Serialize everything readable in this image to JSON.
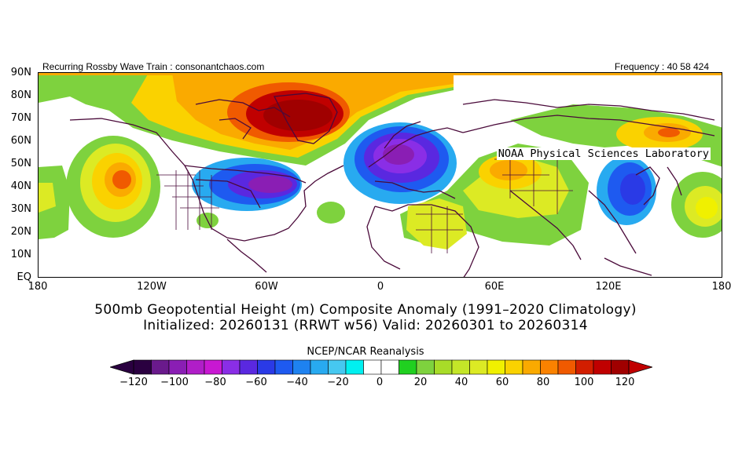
{
  "header": {
    "left": "Recurring Rossby Wave Train : consonantchaos.com",
    "right": "Frequency : 40 58 424",
    "lab": "NOAA Physical Sciences Laboratory"
  },
  "map": {
    "lat_labels": [
      "90N",
      "80N",
      "70N",
      "60N",
      "50N",
      "40N",
      "30N",
      "20N",
      "10N",
      "EQ"
    ],
    "lon_labels": [
      "180",
      "120W",
      "60W",
      "0",
      "60E",
      "120E",
      "180"
    ]
  },
  "title": {
    "line1": "500mb Geopotential Height (m) Composite Anomaly (1991–2020 Climatology)",
    "line2": "Initialized: 20260131 (RRWT w56) Valid: 20260301 to 20260314"
  },
  "colorbar": {
    "source": "NCEP/NCAR Reanalysis",
    "ticks": [
      "−120",
      "−100",
      "−80",
      "−60",
      "−40",
      "−20",
      "0",
      "20",
      "40",
      "60",
      "80",
      "100",
      "120"
    ],
    "colors": [
      "#2a0040",
      "#6a1a8c",
      "#8a1eb4",
      "#b01ec8",
      "#c818d2",
      "#8a2ee6",
      "#5a28e0",
      "#2a3ae6",
      "#1e5af0",
      "#1e82f0",
      "#28aaf0",
      "#46c8f0",
      "#00f0f0",
      "#ffffff",
      "#ffffff",
      "#20d020",
      "#7ed23e",
      "#a8dc28",
      "#c4e628",
      "#dcea24",
      "#f0f000",
      "#fad200",
      "#faaa00",
      "#fa8200",
      "#f05a00",
      "#d21e00",
      "#c00000",
      "#a00000"
    ]
  }
}
